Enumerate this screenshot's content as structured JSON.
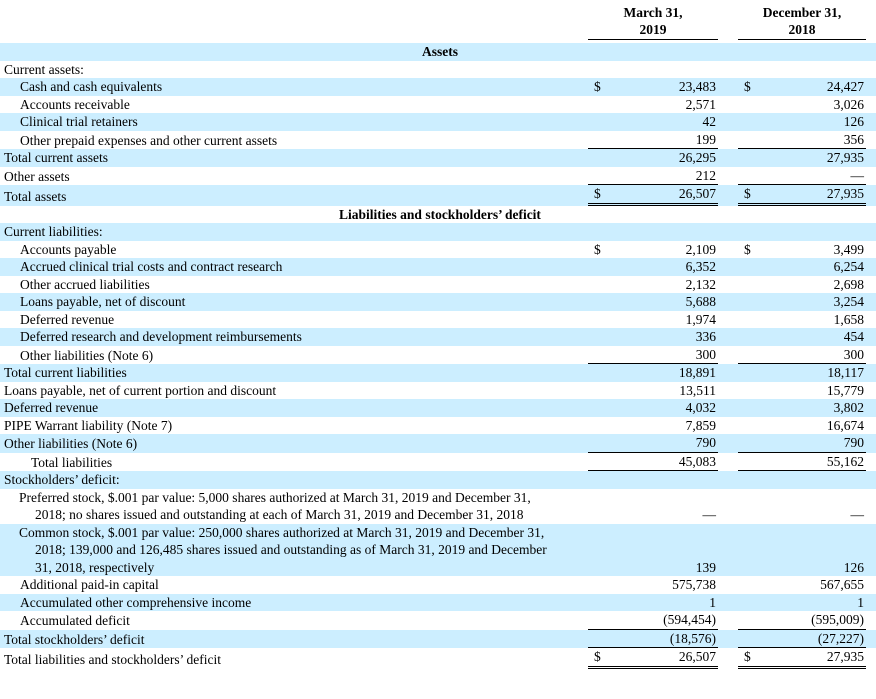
{
  "currency_symbol": "$",
  "colors": {
    "highlight": "#cceeff"
  },
  "columns": [
    {
      "line1": "March 31,",
      "line2": "2019"
    },
    {
      "line1": "December 31,",
      "line2": "2018"
    }
  ],
  "rows": [
    {
      "label": "Assets",
      "center": true,
      "bold": true,
      "highlight": true
    },
    {
      "label": "Current assets:",
      "indent": 0
    },
    {
      "label": "Cash and cash equivalents",
      "indent": 1,
      "highlight": true,
      "dollar": true,
      "values": [
        "23,483",
        "24,427"
      ]
    },
    {
      "label": "Accounts receivable",
      "indent": 1,
      "values": [
        "2,571",
        "3,026"
      ]
    },
    {
      "label": "Clinical trial retainers",
      "indent": 1,
      "highlight": true,
      "values": [
        "42",
        "126"
      ]
    },
    {
      "label": "Other prepaid expenses and other current assets",
      "indent": 1,
      "values": [
        "199",
        "356"
      ],
      "rule": "single"
    },
    {
      "label": "Total current assets",
      "indent": 0,
      "highlight": true,
      "values": [
        "26,295",
        "27,935"
      ]
    },
    {
      "label": "Other assets",
      "indent": 0,
      "values": [
        "212",
        "—"
      ],
      "rule": "single"
    },
    {
      "label": "Total assets",
      "indent": 0,
      "highlight": true,
      "dollar": true,
      "values": [
        "26,507",
        "27,935"
      ],
      "rule": "double"
    },
    {
      "label": "Liabilities and stockholders’ deficit",
      "center": true,
      "bold": true
    },
    {
      "label": "Current liabilities:",
      "indent": 0,
      "highlight": true
    },
    {
      "label": "Accounts payable",
      "indent": 1,
      "dollar": true,
      "values": [
        "2,109",
        "3,499"
      ]
    },
    {
      "label": "Accrued clinical trial costs and contract research",
      "indent": 1,
      "highlight": true,
      "values": [
        "6,352",
        "6,254"
      ]
    },
    {
      "label": "Other accrued liabilities",
      "indent": 1,
      "values": [
        "2,132",
        "2,698"
      ]
    },
    {
      "label": "Loans payable, net of discount",
      "indent": 1,
      "highlight": true,
      "values": [
        "5,688",
        "3,254"
      ]
    },
    {
      "label": "Deferred revenue",
      "indent": 1,
      "values": [
        "1,974",
        "1,658"
      ]
    },
    {
      "label": "Deferred research and development reimbursements",
      "indent": 1,
      "highlight": true,
      "values": [
        "336",
        "454"
      ]
    },
    {
      "label": "Other liabilities (Note 6)",
      "indent": 1,
      "values": [
        "300",
        "300"
      ],
      "rule": "single"
    },
    {
      "label": "Total current liabilities",
      "indent": 0,
      "highlight": true,
      "values": [
        "18,891",
        "18,117"
      ]
    },
    {
      "label": "Loans payable, net of current portion and discount",
      "indent": 0,
      "values": [
        "13,511",
        "15,779"
      ]
    },
    {
      "label": "Deferred revenue",
      "indent": 0,
      "highlight": true,
      "values": [
        "4,032",
        "3,802"
      ]
    },
    {
      "label": "PIPE Warrant liability (Note 7)",
      "indent": 0,
      "values": [
        "7,859",
        "16,674"
      ]
    },
    {
      "label": "Other liabilities (Note 6)",
      "indent": 0,
      "highlight": true,
      "values": [
        "790",
        "790"
      ],
      "rule": "single"
    },
    {
      "label": "Total liabilities",
      "indent": 2,
      "values": [
        "45,083",
        "55,162"
      ],
      "rule": "single"
    },
    {
      "label": "Stockholders’ deficit:",
      "indent": 0,
      "highlight": true
    },
    {
      "label": "Preferred stock, $.001 par value: 5,000 shares authorized at March 31, 2019 and December 31, 2018; no shares issued and outstanding at each of March 31, 2019 and December 31, 2018",
      "indent": 1,
      "hang": true,
      "values": [
        "—",
        "—"
      ]
    },
    {
      "label": "Common stock, $.001 par value: 250,000 shares authorized at March 31, 2019 and December 31, 2018; 139,000 and 126,485 shares issued and outstanding as of March 31, 2019 and December 31, 2018, respectively",
      "indent": 1,
      "hang": true,
      "highlight": true,
      "values": [
        "139",
        "126"
      ]
    },
    {
      "label": "Additional paid-in capital",
      "indent": 1,
      "values": [
        "575,738",
        "567,655"
      ]
    },
    {
      "label": "Accumulated other comprehensive income",
      "indent": 1,
      "highlight": true,
      "values": [
        "1",
        "1"
      ]
    },
    {
      "label": "Accumulated deficit",
      "indent": 1,
      "values": [
        "(594,454)",
        "(595,009)"
      ],
      "rule": "single"
    },
    {
      "label": "Total stockholders’ deficit",
      "indent": 0,
      "highlight": true,
      "values": [
        "(18,576)",
        "(27,227)"
      ],
      "rule": "single"
    },
    {
      "label": "Total liabilities and stockholders’ deficit",
      "indent": 0,
      "dollar": true,
      "values": [
        "26,507",
        "27,935"
      ],
      "rule": "double"
    }
  ]
}
